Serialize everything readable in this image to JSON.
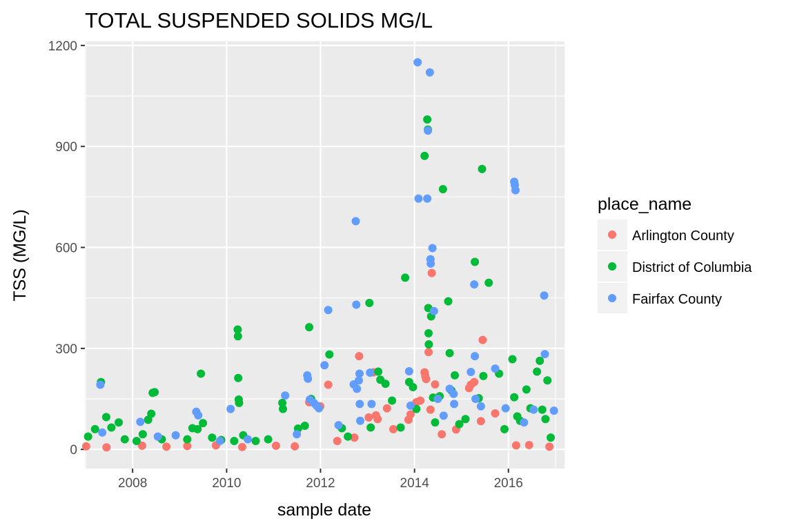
{
  "chart_data": {
    "type": "scatter",
    "title": "TOTAL SUSPENDED SOLIDS MG/L",
    "xlabel": "sample date",
    "ylabel": "TSS (MG/L)",
    "x_ticks": [
      "2008",
      "2010",
      "2012",
      "2014",
      "2016"
    ],
    "y_ticks": [
      "0",
      "300",
      "600",
      "900",
      "1200"
    ],
    "xlim": [
      "2006-12-26",
      "2017-03-12"
    ],
    "ylim": [
      -57,
      1212
    ],
    "grid": true,
    "legend": {
      "title": "place_name",
      "position": "right",
      "entries": [
        "Arlington County",
        "District of Columbia",
        "Fairfax County"
      ]
    },
    "series": [
      {
        "name": "Arlington County",
        "color": "#F8766D",
        "points": [
          [
            "2007-01-05",
            9
          ],
          [
            "2007-06-12",
            6
          ],
          [
            "2008-03-15",
            11
          ],
          [
            "2008-09-20",
            8
          ],
          [
            "2009-03-01",
            10
          ],
          [
            "2009-10-10",
            12
          ],
          [
            "2010-05-02",
            7
          ],
          [
            "2011-01-20",
            11
          ],
          [
            "2011-06-15",
            9
          ],
          [
            "2011-10-05",
            140
          ],
          [
            "2011-12-30",
            128
          ],
          [
            "2012-03-01",
            192
          ],
          [
            "2012-05-10",
            25
          ],
          [
            "2012-09-20",
            35
          ],
          [
            "2012-10-27",
            277
          ],
          [
            "2013-01-10",
            95
          ],
          [
            "2013-02-15",
            229
          ],
          [
            "2013-03-07",
            101
          ],
          [
            "2013-03-20",
            90
          ],
          [
            "2013-06-01",
            122
          ],
          [
            "2013-07-20",
            60
          ],
          [
            "2013-11-15",
            88
          ],
          [
            "2013-12-01",
            104
          ],
          [
            "2014-01-15",
            140
          ],
          [
            "2014-02-15",
            145
          ],
          [
            "2014-03-20",
            229
          ],
          [
            "2014-03-25",
            218
          ],
          [
            "2014-04-01",
            209
          ],
          [
            "2014-04-20",
            289
          ],
          [
            "2014-05-05",
            118
          ],
          [
            "2014-05-15",
            524
          ],
          [
            "2014-06-10",
            193
          ],
          [
            "2014-08-01",
            45
          ],
          [
            "2014-11-20",
            59
          ],
          [
            "2015-03-01",
            182
          ],
          [
            "2015-03-15",
            192
          ],
          [
            "2015-04-10",
            200
          ],
          [
            "2015-06-15",
            325
          ],
          [
            "2015-06-01",
            84
          ],
          [
            "2015-09-20",
            107
          ],
          [
            "2016-03-01",
            12
          ],
          [
            "2016-06-10",
            13
          ],
          [
            "2016-11-15",
            8
          ]
        ]
      },
      {
        "name": "District of Columbia",
        "color": "#00BA38",
        "points": [
          [
            "2007-01-20",
            38
          ],
          [
            "2007-03-15",
            60
          ],
          [
            "2007-04-30",
            200
          ],
          [
            "2007-06-10",
            96
          ],
          [
            "2007-07-20",
            65
          ],
          [
            "2007-09-15",
            80
          ],
          [
            "2007-11-01",
            30
          ],
          [
            "2008-02-01",
            25
          ],
          [
            "2008-03-20",
            45
          ],
          [
            "2008-05-01",
            88
          ],
          [
            "2008-05-25",
            106
          ],
          [
            "2008-06-05",
            168
          ],
          [
            "2008-06-20",
            170
          ],
          [
            "2008-08-15",
            30
          ],
          [
            "2009-03-01",
            30
          ],
          [
            "2009-04-10",
            63
          ],
          [
            "2009-05-20",
            60
          ],
          [
            "2009-06-15",
            225
          ],
          [
            "2009-07-01",
            78
          ],
          [
            "2009-09-10",
            35
          ],
          [
            "2009-11-20",
            28
          ],
          [
            "2010-03-01",
            25
          ],
          [
            "2010-03-28",
            356
          ],
          [
            "2010-03-30",
            336
          ],
          [
            "2010-04-01",
            212
          ],
          [
            "2010-04-05",
            148
          ],
          [
            "2010-04-08",
            138
          ],
          [
            "2010-05-10",
            42
          ],
          [
            "2010-08-15",
            25
          ],
          [
            "2010-11-20",
            30
          ],
          [
            "2011-03-10",
            138
          ],
          [
            "2011-03-15",
            120
          ],
          [
            "2011-07-10",
            62
          ],
          [
            "2011-09-01",
            70
          ],
          [
            "2011-10-05",
            363
          ],
          [
            "2011-10-20",
            150
          ],
          [
            "2012-03-10",
            282
          ],
          [
            "2012-06-15",
            63
          ],
          [
            "2012-08-01",
            38
          ],
          [
            "2013-01-15",
            435
          ],
          [
            "2013-01-25",
            65
          ],
          [
            "2013-03-25",
            231
          ],
          [
            "2013-04-10",
            207
          ],
          [
            "2013-05-20",
            195
          ],
          [
            "2013-07-10",
            145
          ],
          [
            "2013-09-15",
            65
          ],
          [
            "2013-10-20",
            510
          ],
          [
            "2013-11-20",
            200
          ],
          [
            "2013-12-20",
            185
          ],
          [
            "2014-01-15",
            120
          ],
          [
            "2014-03-20",
            872
          ],
          [
            "2014-04-10",
            980
          ],
          [
            "2014-04-15",
            950
          ],
          [
            "2014-04-18",
            420
          ],
          [
            "2014-04-20",
            345
          ],
          [
            "2014-04-22",
            312
          ],
          [
            "2014-05-10",
            395
          ],
          [
            "2014-05-25",
            154
          ],
          [
            "2014-06-10",
            80
          ],
          [
            "2014-07-15",
            158
          ],
          [
            "2014-08-10",
            773
          ],
          [
            "2014-09-20",
            440
          ],
          [
            "2014-10-01",
            286
          ],
          [
            "2014-10-15",
            175
          ],
          [
            "2014-11-10",
            220
          ],
          [
            "2014-12-15",
            75
          ],
          [
            "2015-02-01",
            90
          ],
          [
            "2015-04-15",
            557
          ],
          [
            "2015-05-15",
            152
          ],
          [
            "2015-06-10",
            833
          ],
          [
            "2015-06-20",
            218
          ],
          [
            "2015-08-01",
            495
          ],
          [
            "2015-10-20",
            225
          ],
          [
            "2015-12-01",
            60
          ],
          [
            "2016-02-01",
            268
          ],
          [
            "2016-02-15",
            155
          ],
          [
            "2016-03-10",
            98
          ],
          [
            "2016-04-01",
            85
          ],
          [
            "2016-05-20",
            178
          ],
          [
            "2016-06-20",
            122
          ],
          [
            "2016-08-10",
            231
          ],
          [
            "2016-09-01",
            263
          ],
          [
            "2016-09-20",
            118
          ],
          [
            "2016-10-15",
            90
          ],
          [
            "2016-10-30",
            205
          ],
          [
            "2016-11-25",
            35
          ]
        ]
      },
      {
        "name": "Fairfax County",
        "color": "#619CFF",
        "points": [
          [
            "2007-04-25",
            192
          ],
          [
            "2007-05-10",
            50
          ],
          [
            "2008-03-01",
            82
          ],
          [
            "2008-07-15",
            38
          ],
          [
            "2008-12-01",
            42
          ],
          [
            "2009-05-10",
            112
          ],
          [
            "2009-05-25",
            101
          ],
          [
            "2009-11-10",
            25
          ],
          [
            "2010-02-01",
            120
          ],
          [
            "2010-06-15",
            30
          ],
          [
            "2011-04-01",
            160
          ],
          [
            "2011-07-01",
            45
          ],
          [
            "2011-09-20",
            220
          ],
          [
            "2011-09-25",
            210
          ],
          [
            "2011-10-10",
            148
          ],
          [
            "2011-11-10",
            138
          ],
          [
            "2011-12-01",
            130
          ],
          [
            "2011-12-20",
            122
          ],
          [
            "2012-02-01",
            250
          ],
          [
            "2012-03-01",
            414
          ],
          [
            "2012-05-20",
            72
          ],
          [
            "2012-09-15",
            193
          ],
          [
            "2012-10-01",
            678
          ],
          [
            "2012-10-05",
            430
          ],
          [
            "2012-10-10",
            180
          ],
          [
            "2012-10-25",
            205
          ],
          [
            "2012-10-30",
            225
          ],
          [
            "2012-11-01",
            135
          ],
          [
            "2012-11-05",
            85
          ],
          [
            "2013-01-20",
            228
          ],
          [
            "2013-02-01",
            135
          ],
          [
            "2013-11-20",
            232
          ],
          [
            "2013-12-01",
            130
          ],
          [
            "2014-01-25",
            1150
          ],
          [
            "2014-02-01",
            745
          ],
          [
            "2014-04-10",
            745
          ],
          [
            "2014-04-15",
            947
          ],
          [
            "2014-04-30",
            1120
          ],
          [
            "2014-05-05",
            565
          ],
          [
            "2014-05-07",
            552
          ],
          [
            "2014-05-20",
            598
          ],
          [
            "2014-06-01",
            411
          ],
          [
            "2014-07-01",
            150
          ],
          [
            "2014-08-15",
            100
          ],
          [
            "2014-10-01",
            180
          ],
          [
            "2014-11-01",
            165
          ],
          [
            "2014-11-05",
            135
          ],
          [
            "2015-03-15",
            230
          ],
          [
            "2015-04-10",
            490
          ],
          [
            "2015-04-15",
            277
          ],
          [
            "2015-04-20",
            150
          ],
          [
            "2015-06-01",
            128
          ],
          [
            "2015-09-20",
            240
          ],
          [
            "2015-12-10",
            122
          ],
          [
            "2016-02-15",
            795
          ],
          [
            "2016-02-20",
            785
          ],
          [
            "2016-02-25",
            770
          ],
          [
            "2016-05-01",
            80
          ],
          [
            "2016-07-15",
            118
          ],
          [
            "2016-10-05",
            457
          ],
          [
            "2016-10-10",
            283
          ],
          [
            "2016-12-20",
            115
          ]
        ]
      }
    ]
  }
}
